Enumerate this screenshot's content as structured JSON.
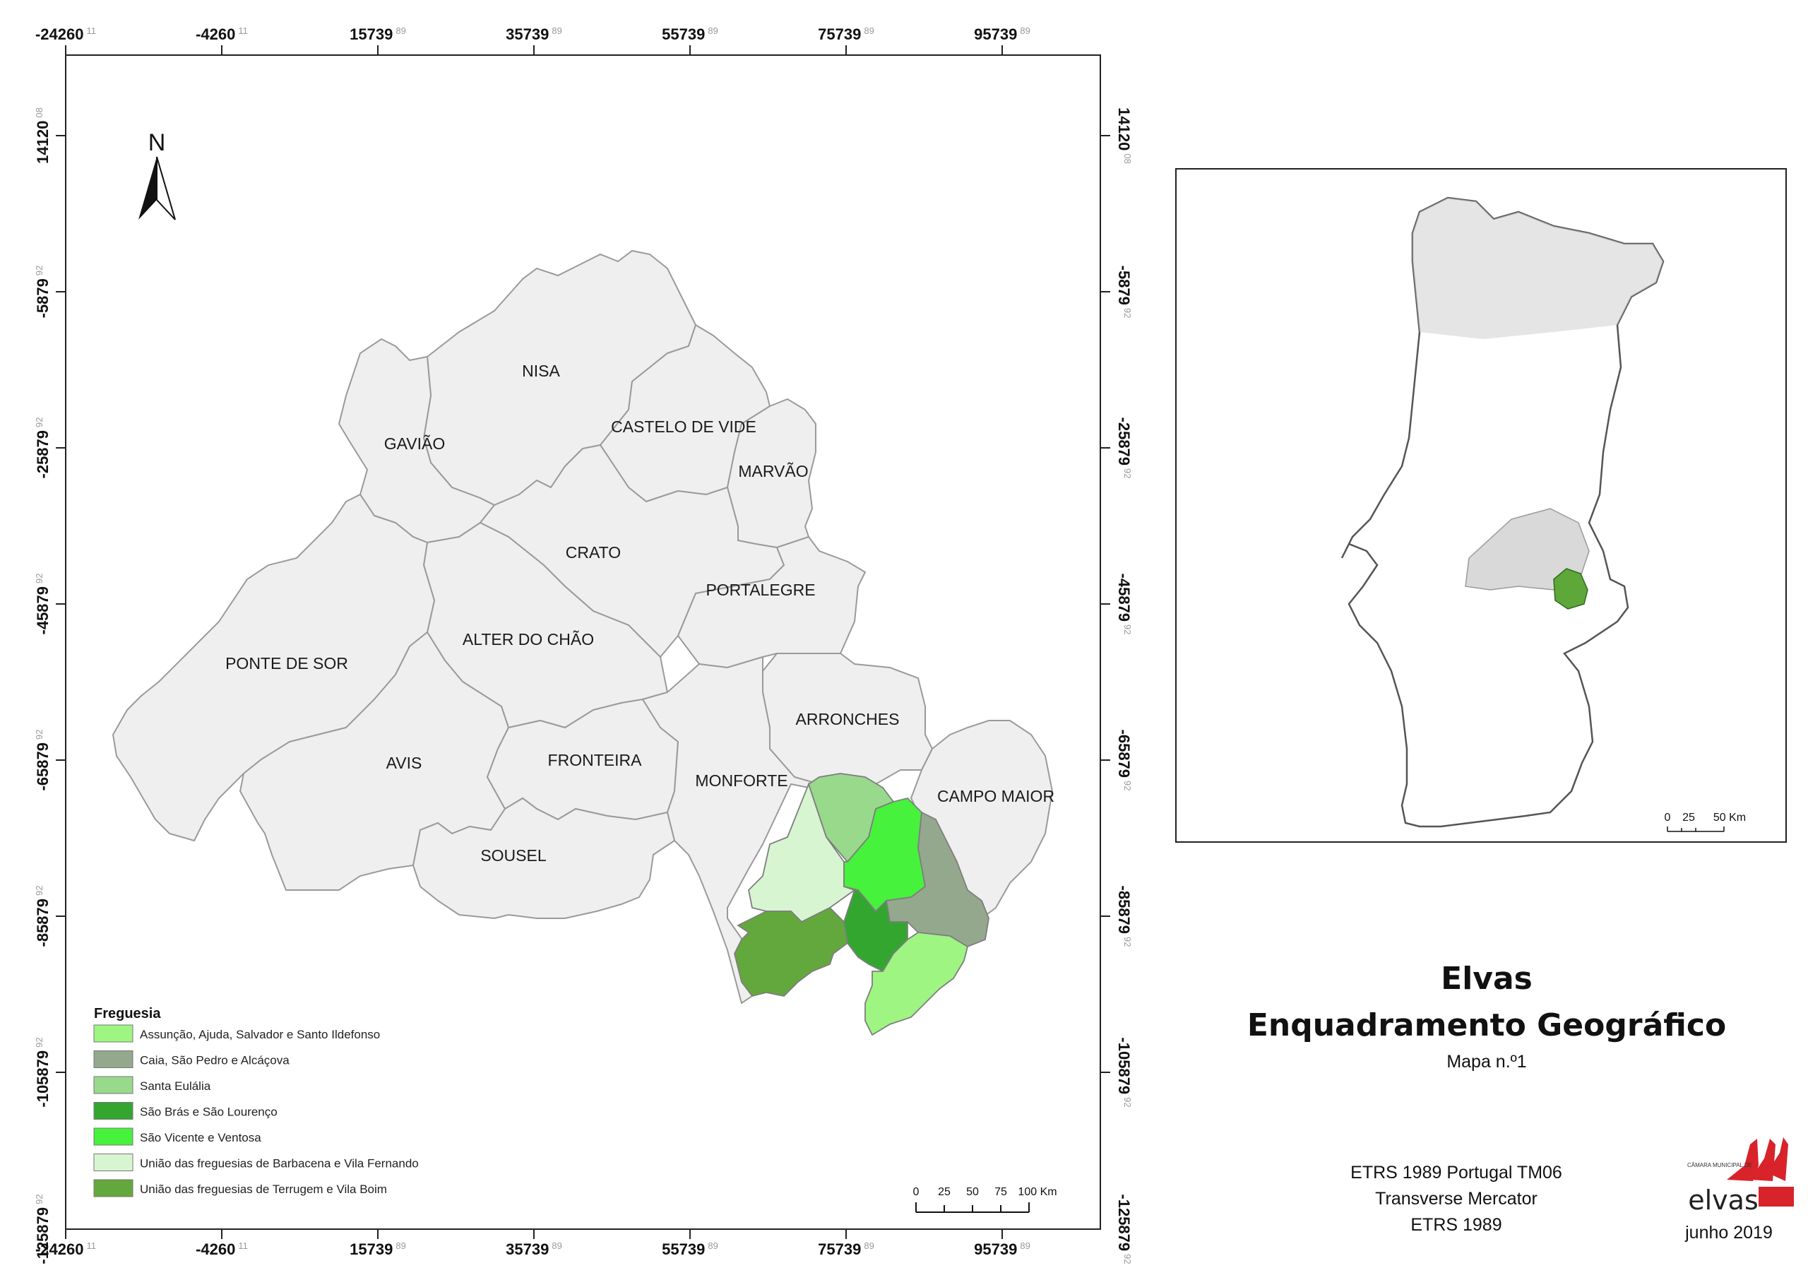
{
  "map": {
    "x_ticks": [
      {
        "main": "-24260",
        "sup": "11"
      },
      {
        "main": "-4260",
        "sup": "11"
      },
      {
        "main": "15739",
        "sup": "89"
      },
      {
        "main": "35739",
        "sup": "89"
      },
      {
        "main": "55739",
        "sup": "89"
      },
      {
        "main": "75739",
        "sup": "89"
      },
      {
        "main": "95739",
        "sup": "89"
      }
    ],
    "y_ticks": [
      {
        "main": "14120",
        "sup": "08"
      },
      {
        "main": "-5879",
        "sup": "92"
      },
      {
        "main": "-25879",
        "sup": "92"
      },
      {
        "main": "-45879",
        "sup": "92"
      },
      {
        "main": "-65879",
        "sup": "92"
      },
      {
        "main": "-85879",
        "sup": "92"
      },
      {
        "main": "-105879",
        "sup": "92"
      },
      {
        "main": "-125879",
        "sup": "92"
      }
    ],
    "north_label": "N",
    "municipalities": [
      {
        "id": "nisa",
        "label": "NISA"
      },
      {
        "id": "gaviao",
        "label": "GAVIÃO"
      },
      {
        "id": "castelo-de-vide",
        "label": "CASTELO DE VIDE"
      },
      {
        "id": "marvao",
        "label": "MARVÃO"
      },
      {
        "id": "crato",
        "label": "CRATO"
      },
      {
        "id": "portalegre",
        "label": "PORTALEGRE"
      },
      {
        "id": "alter-do-chao",
        "label": "ALTER DO CHÃO"
      },
      {
        "id": "ponte-de-sor",
        "label": "PONTE DE SOR"
      },
      {
        "id": "arronches",
        "label": "ARRONCHES"
      },
      {
        "id": "avis",
        "label": "AVIS"
      },
      {
        "id": "fronteira",
        "label": "FRONTEIRA"
      },
      {
        "id": "monforte",
        "label": "MONFORTE"
      },
      {
        "id": "campo-maior",
        "label": "CAMPO MAIOR"
      },
      {
        "id": "sousel",
        "label": "SOUSEL"
      }
    ],
    "legend": {
      "title": "Freguesia",
      "items": [
        {
          "label": "Assunção, Ajuda, Salvador e Santo Ildefonso",
          "color": "#9ef582"
        },
        {
          "label": "Caia, São Pedro e Alcáçova",
          "color": "#94a88d"
        },
        {
          "label": "Santa Eulália",
          "color": "#98d98c"
        },
        {
          "label": "São Brás e São Lourenço",
          "color": "#33a630"
        },
        {
          "label": "São Vicente e Ventosa",
          "color": "#46f23c"
        },
        {
          "label": "União das freguesias de Barbacena e Vila Fernando",
          "color": "#d8f5d2"
        },
        {
          "label": "União das freguesias de Terrugem e Vila Boim",
          "color": "#63a83c"
        }
      ]
    },
    "scale_bar": {
      "labels": [
        "0",
        "25",
        "50",
        "75",
        "100 Km"
      ]
    }
  },
  "inset": {
    "scale_bar": {
      "labels": [
        "0",
        "25",
        "50 Km"
      ]
    }
  },
  "title": {
    "line1": "Elvas",
    "line2": "Enquadramento Geográfico",
    "subtitle": "Mapa n.º1"
  },
  "info": {
    "line1": "ETRS 1989 Portugal TM06",
    "line2": "Transverse Mercator",
    "line3": "ETRS 1989",
    "date": "junho 2019"
  },
  "logo": {
    "top_text": "CÂMARA MUNICIPAL DE",
    "wordmark": "elvas"
  }
}
